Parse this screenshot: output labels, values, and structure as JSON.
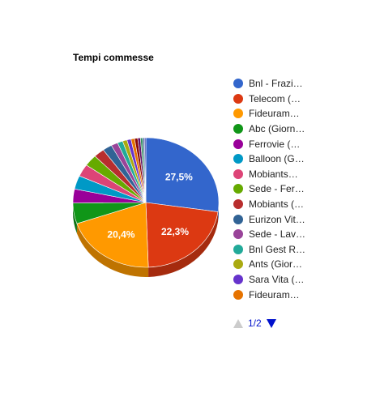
{
  "chart_data": {
    "type": "pie",
    "title": "Tempi commesse",
    "legend_position": "right",
    "slices": [
      {
        "label": "Bnl - Frazi…",
        "value": 27.5,
        "display": "27,5%",
        "color": "#3366cc"
      },
      {
        "label": "Telecom (…",
        "value": 22.3,
        "display": "22,3%",
        "color": "#dc3912"
      },
      {
        "label": "Fideuram…",
        "value": 20.4,
        "display": "20,4%",
        "color": "#ff9900"
      },
      {
        "label": "Abc (Giorn…",
        "value": 5.2,
        "color": "#109618"
      },
      {
        "label": "Ferrovie (…",
        "value": 3.5,
        "color": "#990099"
      },
      {
        "label": "Balloon (G…",
        "value": 3.4,
        "color": "#0099c6"
      },
      {
        "label": "Mobiants…",
        "value": 3.1,
        "color": "#dd4477"
      },
      {
        "label": "Sede - Fer…",
        "value": 2.9,
        "color": "#66aa00"
      },
      {
        "label": "Mobiants (…",
        "value": 2.4,
        "color": "#b82e2e"
      },
      {
        "label": "Eurizon Vit…",
        "value": 2.1,
        "color": "#316395"
      },
      {
        "label": "Sede - Lav…",
        "value": 1.5,
        "color": "#994499"
      },
      {
        "label": "Bnl Gest R…",
        "value": 1.2,
        "color": "#22aa99"
      },
      {
        "label": "Ants (Gior…",
        "value": 1.0,
        "color": "#aaaa11"
      },
      {
        "label": "Sara Vita (…",
        "value": 0.9,
        "color": "#6633cc"
      },
      {
        "label": "Fideuram…",
        "value": 0.8,
        "color": "#e67300"
      },
      {
        "value": 0.7,
        "color": "#8b0707"
      },
      {
        "value": 0.6,
        "color": "#651067"
      },
      {
        "value": 0.5,
        "color": "#329262"
      },
      {
        "value": 0.4,
        "color": "#5574a6"
      },
      {
        "value": 0.3,
        "color": "#3b3eac"
      }
    ]
  },
  "pager": {
    "text": "1/2"
  }
}
